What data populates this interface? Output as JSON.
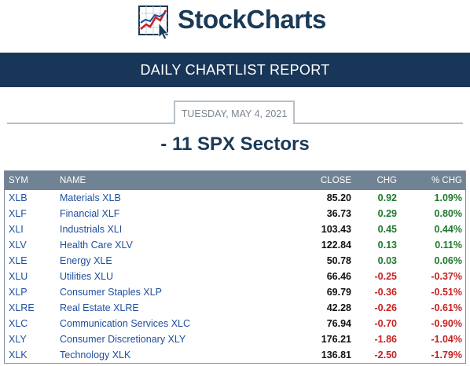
{
  "brand": {
    "name": "StockCharts",
    "logo_icon": "chart-icon",
    "accent": "#183657"
  },
  "report": {
    "title": "DAILY CHARTLIST REPORT",
    "date": "TUESDAY, MAY 4, 2021",
    "list_name": "- 11 SPX Sectors"
  },
  "table": {
    "columns": {
      "sym": "SYM",
      "name": "NAME",
      "close": "CLOSE",
      "chg": "CHG",
      "pct": "% CHG"
    },
    "rows": [
      {
        "sym": "XLB",
        "name": "Materials XLB",
        "close": "85.20",
        "chg": "0.92",
        "pct": "1.09%",
        "dir": "pos"
      },
      {
        "sym": "XLF",
        "name": "Financial XLF",
        "close": "36.73",
        "chg": "0.29",
        "pct": "0.80%",
        "dir": "pos"
      },
      {
        "sym": "XLI",
        "name": "Industrials XLI",
        "close": "103.43",
        "chg": "0.45",
        "pct": "0.44%",
        "dir": "pos"
      },
      {
        "sym": "XLV",
        "name": "Health Care XLV",
        "close": "122.84",
        "chg": "0.13",
        "pct": "0.11%",
        "dir": "pos"
      },
      {
        "sym": "XLE",
        "name": "Energy XLE",
        "close": "50.78",
        "chg": "0.03",
        "pct": "0.06%",
        "dir": "pos"
      },
      {
        "sym": "XLU",
        "name": "Utilities XLU",
        "close": "66.46",
        "chg": "-0.25",
        "pct": "-0.37%",
        "dir": "neg"
      },
      {
        "sym": "XLP",
        "name": "Consumer Staples XLP",
        "close": "69.79",
        "chg": "-0.36",
        "pct": "-0.51%",
        "dir": "neg"
      },
      {
        "sym": "XLRE",
        "name": "Real Estate XLRE",
        "close": "42.28",
        "chg": "-0.26",
        "pct": "-0.61%",
        "dir": "neg"
      },
      {
        "sym": "XLC",
        "name": "Communication Services XLC",
        "close": "76.94",
        "chg": "-0.70",
        "pct": "-0.90%",
        "dir": "neg"
      },
      {
        "sym": "XLY",
        "name": "Consumer Discretionary XLY",
        "close": "176.21",
        "chg": "-1.86",
        "pct": "-1.04%",
        "dir": "neg"
      },
      {
        "sym": "XLK",
        "name": "Technology XLK",
        "close": "136.81",
        "chg": "-2.50",
        "pct": "-1.79%",
        "dir": "neg"
      }
    ]
  }
}
